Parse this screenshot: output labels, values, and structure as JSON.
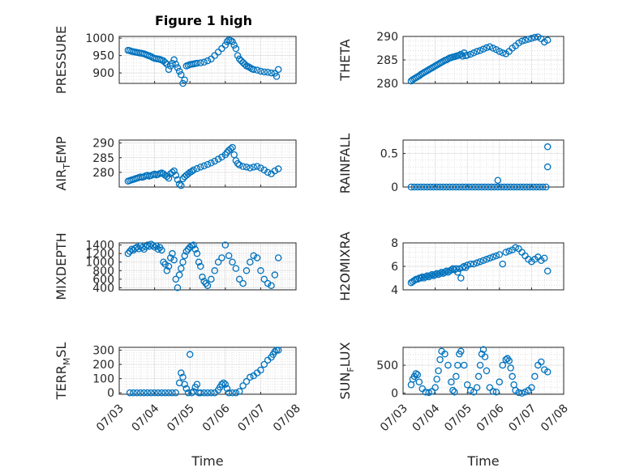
{
  "figure_title": "Figure 1 high",
  "colors": {
    "series": "#0072BD",
    "axes": "#262626",
    "grid": "#dcdcdc"
  },
  "chart_data": [
    {
      "type": "scatter",
      "title": "Figure 1 high",
      "xlabel": "",
      "ylabel": "PRESSURE",
      "xlim": [
        0,
        5
      ],
      "ylim": [
        870,
        1005
      ],
      "yticks": [
        900,
        950,
        1000
      ],
      "grid": true,
      "x": [
        0.25,
        0.3,
        0.35,
        0.4,
        0.45,
        0.5,
        0.55,
        0.6,
        0.65,
        0.7,
        0.75,
        0.8,
        0.85,
        0.9,
        0.95,
        1.0,
        1.05,
        1.1,
        1.15,
        1.2,
        1.25,
        1.3,
        1.35,
        1.4,
        1.45,
        1.5,
        1.55,
        1.6,
        1.65,
        1.7,
        1.75,
        1.8,
        1.85,
        1.9,
        1.95,
        2.0,
        2.05,
        2.1,
        2.15,
        2.2,
        2.3,
        2.4,
        2.5,
        2.6,
        2.7,
        2.8,
        2.9,
        3.0,
        3.05,
        3.1,
        3.15,
        3.2,
        3.25,
        3.3,
        3.35,
        3.4,
        3.45,
        3.5,
        3.55,
        3.6,
        3.65,
        3.7,
        3.75,
        3.8,
        3.9,
        4.0,
        4.1,
        4.2,
        4.3,
        4.4,
        4.45,
        4.5
      ],
      "y": [
        965,
        964,
        962,
        961,
        960,
        959,
        958,
        957,
        956,
        955,
        953,
        951,
        949,
        947,
        944,
        942,
        941,
        940,
        939,
        937,
        935,
        930,
        925,
        910,
        920,
        928,
        938,
        925,
        915,
        905,
        895,
        870,
        880,
        920,
        922,
        924,
        925,
        926,
        927,
        928,
        929,
        931,
        935,
        940,
        950,
        960,
        970,
        980,
        990,
        995,
        993,
        990,
        980,
        970,
        950,
        940,
        935,
        930,
        925,
        920,
        918,
        915,
        912,
        910,
        908,
        905,
        903,
        902,
        900,
        899,
        890,
        910
      ]
    },
    {
      "type": "scatter",
      "xlabel": "",
      "ylabel": "THETA",
      "xlim": [
        0,
        5
      ],
      "ylim": [
        280,
        290
      ],
      "yticks": [
        280,
        285,
        290
      ],
      "grid": true,
      "x": [
        0.25,
        0.3,
        0.35,
        0.4,
        0.45,
        0.5,
        0.55,
        0.6,
        0.65,
        0.7,
        0.75,
        0.8,
        0.85,
        0.9,
        0.95,
        1.0,
        1.05,
        1.1,
        1.15,
        1.2,
        1.25,
        1.3,
        1.35,
        1.4,
        1.45,
        1.5,
        1.55,
        1.6,
        1.65,
        1.7,
        1.75,
        1.8,
        1.85,
        1.9,
        1.95,
        2.0,
        2.1,
        2.2,
        2.3,
        2.4,
        2.5,
        2.6,
        2.7,
        2.8,
        2.9,
        3.0,
        3.1,
        3.2,
        3.3,
        3.4,
        3.5,
        3.6,
        3.7,
        3.8,
        3.9,
        4.0,
        4.1,
        4.2,
        4.3,
        4.4,
        4.5
      ],
      "y": [
        280.5,
        280.8,
        281.0,
        281.2,
        281.4,
        281.6,
        281.9,
        282.1,
        282.3,
        282.5,
        282.7,
        282.9,
        283.1,
        283.3,
        283.5,
        283.7,
        283.9,
        284.1,
        284.3,
        284.5,
        284.7,
        284.9,
        285.0,
        285.2,
        285.4,
        285.5,
        285.6,
        285.7,
        285.8,
        285.9,
        286.0,
        286.2,
        285.8,
        286.5,
        285.9,
        286.0,
        286.2,
        286.5,
        286.8,
        287.0,
        287.3,
        287.6,
        287.8,
        287.5,
        287.2,
        286.8,
        286.5,
        286.3,
        286.8,
        287.5,
        288.0,
        288.6,
        289.0,
        289.2,
        289.4,
        289.6,
        289.8,
        289.9,
        289.5,
        288.8,
        289.2
      ]
    },
    {
      "type": "scatter",
      "xlabel": "",
      "ylabel": "AIR_TEMP",
      "xlim": [
        0,
        5
      ],
      "ylim": [
        275,
        291
      ],
      "yticks": [
        280,
        285,
        290
      ],
      "grid": true,
      "x": [
        0.25,
        0.3,
        0.35,
        0.4,
        0.45,
        0.5,
        0.55,
        0.6,
        0.65,
        0.7,
        0.75,
        0.8,
        0.85,
        0.9,
        0.95,
        1.0,
        1.05,
        1.1,
        1.15,
        1.2,
        1.25,
        1.3,
        1.35,
        1.4,
        1.45,
        1.5,
        1.55,
        1.6,
        1.65,
        1.7,
        1.75,
        1.8,
        1.85,
        1.9,
        1.95,
        2.0,
        2.05,
        2.1,
        2.2,
        2.3,
        2.4,
        2.5,
        2.6,
        2.7,
        2.8,
        2.9,
        3.0,
        3.05,
        3.1,
        3.15,
        3.2,
        3.25,
        3.3,
        3.35,
        3.4,
        3.5,
        3.6,
        3.7,
        3.8,
        3.9,
        4.0,
        4.1,
        4.2,
        4.3,
        4.4,
        4.5
      ],
      "y": [
        277.0,
        277.2,
        277.4,
        277.6,
        277.8,
        278.0,
        278.2,
        278.4,
        278.3,
        278.5,
        278.8,
        279.0,
        278.7,
        278.9,
        279.2,
        279.4,
        279.1,
        279.3,
        279.6,
        279.8,
        279.5,
        279.0,
        278.6,
        278.0,
        279.5,
        280.0,
        280.5,
        279.0,
        277.5,
        276.0,
        275.5,
        277.8,
        278.5,
        279.0,
        279.5,
        280.0,
        280.3,
        280.8,
        281.3,
        281.8,
        282.2,
        282.7,
        283.2,
        283.8,
        284.5,
        285.2,
        286.0,
        286.8,
        287.5,
        288.0,
        288.5,
        286.0,
        284.0,
        283.0,
        282.5,
        282.0,
        281.8,
        281.5,
        281.8,
        282.0,
        281.5,
        280.8,
        280.0,
        279.5,
        280.5,
        281.2
      ]
    },
    {
      "type": "scatter",
      "xlabel": "",
      "ylabel": "RAINFALL",
      "xlim": [
        0,
        5
      ],
      "ylim": [
        0,
        0.7
      ],
      "yticks": [
        0,
        0.5
      ],
      "grid": true,
      "x": [
        0.25,
        0.35,
        0.45,
        0.55,
        0.65,
        0.75,
        0.85,
        0.95,
        1.05,
        1.15,
        1.25,
        1.35,
        1.45,
        1.55,
        1.65,
        1.75,
        1.85,
        1.95,
        2.05,
        2.15,
        2.25,
        2.35,
        2.45,
        2.55,
        2.65,
        2.75,
        2.85,
        2.95,
        3.05,
        3.15,
        3.25,
        3.35,
        3.45,
        3.55,
        3.65,
        3.75,
        3.85,
        3.95,
        4.05,
        4.15,
        4.25,
        4.35,
        4.45,
        2.95,
        4.5,
        4.5
      ],
      "y": [
        0,
        0,
        0,
        0,
        0,
        0,
        0,
        0,
        0,
        0,
        0,
        0,
        0,
        0,
        0,
        0,
        0,
        0,
        0,
        0,
        0,
        0,
        0,
        0,
        0,
        0,
        0,
        0,
        0,
        0,
        0,
        0,
        0,
        0,
        0,
        0,
        0,
        0,
        0,
        0,
        0,
        0,
        0,
        0.1,
        0.6,
        0.3
      ]
    },
    {
      "type": "scatter",
      "xlabel": "",
      "ylabel": "MIXDEPTH",
      "xlim": [
        0,
        5
      ],
      "ylim": [
        350,
        1450
      ],
      "yticks": [
        400,
        600,
        800,
        1000,
        1200,
        1400
      ],
      "grid": true,
      "x": [
        0.25,
        0.3,
        0.35,
        0.4,
        0.45,
        0.5,
        0.55,
        0.6,
        0.65,
        0.7,
        0.75,
        0.8,
        0.85,
        0.9,
        0.95,
        1.0,
        1.05,
        1.1,
        1.15,
        1.2,
        1.25,
        1.3,
        1.35,
        1.4,
        1.45,
        1.5,
        1.55,
        1.6,
        1.65,
        1.7,
        1.75,
        1.8,
        1.85,
        1.9,
        1.95,
        2.0,
        2.05,
        2.1,
        2.15,
        2.2,
        2.25,
        2.3,
        2.35,
        2.4,
        2.45,
        2.5,
        2.6,
        2.7,
        2.8,
        2.9,
        3.0,
        3.1,
        3.2,
        3.3,
        3.4,
        3.5,
        3.6,
        3.7,
        3.8,
        3.9,
        4.0,
        4.1,
        4.2,
        4.3,
        4.4,
        4.5
      ],
      "y": [
        1200,
        1250,
        1300,
        1280,
        1320,
        1350,
        1310,
        1380,
        1340,
        1300,
        1360,
        1400,
        1370,
        1420,
        1390,
        1350,
        1380,
        1300,
        1340,
        1280,
        1000,
        950,
        800,
        900,
        1100,
        1200,
        1050,
        600,
        400,
        700,
        850,
        1000,
        1150,
        1250,
        1300,
        1350,
        1380,
        1400,
        1300,
        1200,
        1000,
        900,
        650,
        550,
        500,
        450,
        600,
        800,
        1000,
        1100,
        1400,
        1150,
        1000,
        850,
        600,
        500,
        800,
        1000,
        1150,
        1100,
        800,
        600,
        500,
        450,
        700,
        1100
      ]
    },
    {
      "type": "scatter",
      "xlabel": "",
      "ylabel": "H2OMIXRA",
      "xlim": [
        0,
        5
      ],
      "ylim": [
        4,
        8
      ],
      "yticks": [
        4,
        6,
        8
      ],
      "grid": true,
      "x": [
        0.25,
        0.3,
        0.35,
        0.4,
        0.45,
        0.5,
        0.55,
        0.6,
        0.65,
        0.7,
        0.75,
        0.8,
        0.85,
        0.9,
        0.95,
        1.0,
        1.05,
        1.1,
        1.15,
        1.2,
        1.25,
        1.3,
        1.35,
        1.4,
        1.45,
        1.5,
        1.55,
        1.6,
        1.65,
        1.7,
        1.75,
        1.8,
        1.85,
        1.9,
        1.95,
        2.0,
        2.1,
        2.2,
        2.3,
        2.4,
        2.5,
        2.6,
        2.7,
        2.8,
        2.9,
        3.0,
        3.1,
        3.2,
        3.3,
        3.4,
        3.5,
        3.6,
        3.7,
        3.8,
        3.9,
        4.0,
        4.1,
        4.2,
        4.3,
        4.4,
        4.5
      ],
      "y": [
        4.6,
        4.7,
        4.8,
        4.9,
        4.9,
        5.0,
        5.0,
        5.1,
        5.0,
        5.1,
        5.2,
        5.1,
        5.2,
        5.3,
        5.2,
        5.3,
        5.4,
        5.3,
        5.4,
        5.5,
        5.4,
        5.5,
        5.6,
        5.5,
        5.6,
        5.7,
        5.8,
        5.7,
        5.8,
        5.5,
        5.8,
        5.0,
        5.9,
        6.0,
        5.9,
        6.1,
        6.2,
        6.2,
        6.3,
        6.4,
        6.5,
        6.6,
        6.7,
        6.8,
        6.9,
        7.0,
        6.2,
        7.2,
        7.3,
        7.4,
        7.6,
        7.5,
        7.2,
        6.9,
        6.6,
        6.4,
        6.6,
        6.8,
        6.5,
        6.7,
        5.6
      ]
    },
    {
      "type": "scatter",
      "xlabel": "Time",
      "ylabel": "TERR_MSL",
      "xlim": [
        0,
        5
      ],
      "ylim": [
        -10,
        320
      ],
      "yticks": [
        0,
        100,
        200,
        300
      ],
      "xticklabels": [
        "07/03",
        "07/04",
        "07/05",
        "07/06",
        "07/07",
        "07/08"
      ],
      "grid": true,
      "x": [
        0.3,
        0.4,
        0.5,
        0.6,
        0.7,
        0.8,
        0.9,
        1.0,
        1.1,
        1.2,
        1.3,
        1.4,
        1.5,
        1.6,
        1.7,
        1.75,
        1.8,
        1.85,
        1.9,
        1.95,
        2.0,
        2.05,
        2.1,
        2.15,
        2.2,
        2.25,
        2.3,
        2.4,
        2.5,
        2.6,
        2.7,
        2.8,
        2.85,
        2.9,
        2.95,
        3.0,
        3.05,
        3.1,
        3.2,
        3.3,
        3.4,
        3.5,
        3.6,
        3.7,
        3.8,
        3.9,
        4.0,
        4.1,
        4.2,
        4.3,
        4.35,
        4.4,
        4.45,
        4.5
      ],
      "y": [
        0,
        0,
        0,
        0,
        0,
        0,
        0,
        0,
        0,
        0,
        0,
        0,
        0,
        0,
        70,
        140,
        110,
        60,
        30,
        0,
        270,
        0,
        10,
        40,
        60,
        0,
        0,
        0,
        0,
        0,
        0,
        20,
        40,
        60,
        70,
        60,
        30,
        0,
        0,
        0,
        10,
        50,
        80,
        110,
        120,
        140,
        160,
        200,
        230,
        250,
        270,
        290,
        300,
        300
      ]
    },
    {
      "type": "scatter",
      "xlabel": "Time",
      "ylabel": "SUN_FLUX",
      "xlim": [
        0,
        5
      ],
      "ylim": [
        -20,
        820
      ],
      "yticks": [
        0,
        500
      ],
      "xticklabels": [
        "07/03",
        "07/04",
        "07/05",
        "07/06",
        "07/07",
        "07/08"
      ],
      "grid": true,
      "x": [
        0.25,
        0.3,
        0.35,
        0.4,
        0.45,
        0.5,
        0.6,
        0.7,
        0.8,
        0.9,
        1.0,
        1.05,
        1.1,
        1.15,
        1.2,
        1.3,
        1.4,
        1.5,
        1.55,
        1.6,
        1.65,
        1.7,
        1.75,
        1.8,
        1.9,
        2.0,
        2.1,
        2.2,
        2.3,
        2.35,
        2.4,
        2.45,
        2.5,
        2.55,
        2.6,
        2.7,
        2.8,
        2.9,
        3.0,
        3.1,
        3.2,
        3.25,
        3.3,
        3.35,
        3.4,
        3.45,
        3.5,
        3.6,
        3.7,
        3.8,
        3.9,
        4.0,
        4.1,
        4.2,
        4.3,
        4.4,
        4.5
      ],
      "y": [
        150,
        250,
        300,
        350,
        330,
        200,
        80,
        20,
        10,
        30,
        100,
        250,
        400,
        600,
        750,
        700,
        500,
        200,
        50,
        20,
        300,
        500,
        700,
        750,
        500,
        150,
        50,
        20,
        100,
        300,
        500,
        700,
        780,
        650,
        400,
        100,
        30,
        20,
        200,
        500,
        600,
        620,
        580,
        450,
        300,
        150,
        50,
        10,
        0,
        20,
        50,
        100,
        300,
        500,
        560,
        420,
        380
      ]
    }
  ]
}
